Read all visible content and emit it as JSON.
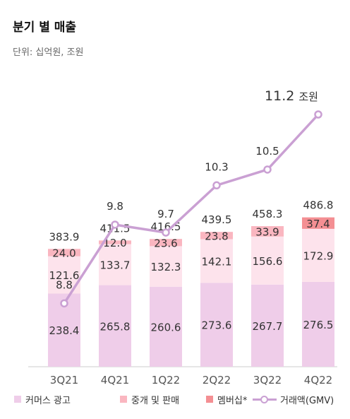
{
  "header": {
    "title": "분기 별 매출",
    "subtitle": "단위: 십억원, 조원"
  },
  "colors": {
    "commerce_ads": "#efcde9",
    "brokerage_sales": "#fde3ec",
    "membership": "#fab6c0",
    "membership_q4": "#f48f93",
    "gmv_line": "#caa0d3",
    "axis": "#cccccc"
  },
  "chart_data": {
    "type": "bar",
    "stacked": true,
    "categories": [
      "3Q21",
      "4Q21",
      "1Q22",
      "2Q22",
      "3Q22",
      "4Q22"
    ],
    "series": [
      {
        "name": "커머스 광고",
        "values": [
          238.4,
          265.8,
          260.6,
          273.6,
          267.7,
          276.5
        ]
      },
      {
        "name": "중개 및 판매",
        "values": [
          121.6,
          133.7,
          132.3,
          142.1,
          156.6,
          172.9
        ]
      },
      {
        "name": "멤버십*",
        "values": [
          24.0,
          12.0,
          23.6,
          23.8,
          33.9,
          37.4
        ]
      }
    ],
    "series_labels": [
      [
        "238.4",
        "265.8",
        "260.6",
        "273.6",
        "267.7",
        "276.5"
      ],
      [
        "121.6",
        "133.7",
        "132.3",
        "142.1",
        "156.6",
        "172.9"
      ],
      [
        "24.0",
        "12.0",
        "23.6",
        "23.8",
        "33.9",
        "37.4"
      ]
    ],
    "totals": [
      383.9,
      411.5,
      416.5,
      439.5,
      458.3,
      486.8
    ],
    "total_labels": [
      "383.9",
      "411.5",
      "416.5",
      "439.5",
      "458.3",
      "486.8"
    ],
    "line": {
      "name": "거래액(GMV)",
      "values": [
        8.8,
        9.8,
        9.7,
        10.3,
        10.5,
        11.2
      ],
      "labels": [
        "8.8",
        "9.8",
        "9.7",
        "10.3",
        "10.5",
        "11.2"
      ],
      "last_unit": "조원"
    },
    "title": "분기 별 매출",
    "subtitle": "단위: 십억원, 조원",
    "legend_position": "bottom",
    "grid": false
  }
}
